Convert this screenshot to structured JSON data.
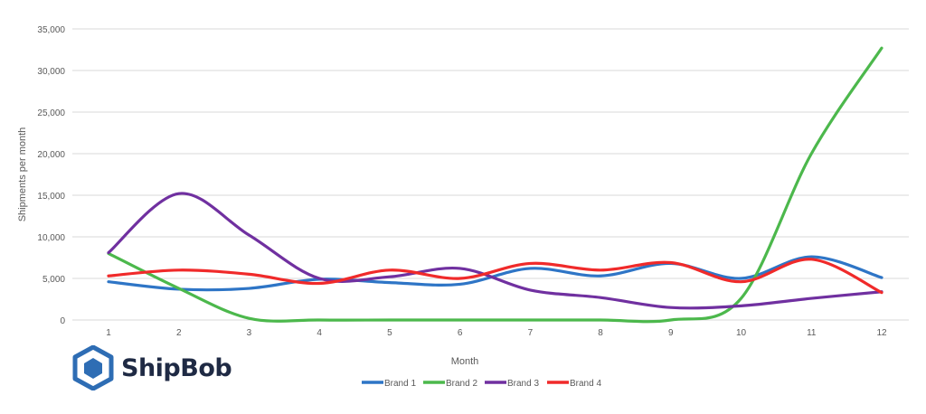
{
  "chart_data": {
    "type": "line",
    "title": "",
    "xlabel": "Month",
    "ylabel": "Shipments per month",
    "x": [
      1,
      2,
      3,
      4,
      5,
      6,
      7,
      8,
      9,
      10,
      11,
      12
    ],
    "ylim": [
      0,
      35000
    ],
    "yticks": [
      0,
      5000,
      10000,
      15000,
      20000,
      25000,
      30000,
      35000
    ],
    "ytick_labels": [
      "0",
      "5,000",
      "10,000",
      "15,000",
      "20,000",
      "25,000",
      "30,000",
      "35,000"
    ],
    "grid": "horizontal",
    "legend": "bottom",
    "smooth": true,
    "series": [
      {
        "name": "Brand 1",
        "color": "#2e75c6",
        "values": [
          4600,
          3700,
          3800,
          4900,
          4500,
          4300,
          6200,
          5300,
          6800,
          5000,
          7600,
          5100
        ]
      },
      {
        "name": "Brand 2",
        "color": "#4cb84c",
        "values": [
          8000,
          3800,
          200,
          0,
          0,
          0,
          0,
          0,
          0,
          2600,
          20000,
          32700
        ]
      },
      {
        "name": "Brand 3",
        "color": "#7030a0",
        "values": [
          8100,
          15200,
          10200,
          5000,
          5200,
          6200,
          3600,
          2700,
          1500,
          1700,
          2600,
          3400
        ]
      },
      {
        "name": "Brand 4",
        "color": "#f02a2a",
        "values": [
          5300,
          6000,
          5500,
          4400,
          6000,
          5000,
          6800,
          6000,
          6900,
          4600,
          7300,
          3300
        ]
      }
    ]
  },
  "logo": {
    "text": "ShipBob",
    "color": "#2e6db4"
  }
}
